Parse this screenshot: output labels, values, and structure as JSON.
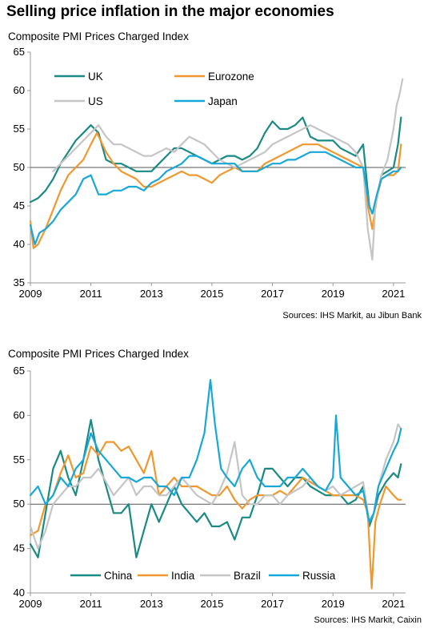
{
  "page": {
    "title": "Selling price inflation in the major economies"
  },
  "chart_data": [
    {
      "type": "line",
      "title": "Composite PMI Prices Charged Index",
      "source": "Sources: IHS Markit, au Jibun Bank",
      "ylim": [
        35,
        65
      ],
      "yticks": [
        "35",
        "40",
        "45",
        "50",
        "55",
        "60",
        "65"
      ],
      "xlim": [
        2009,
        2021.4
      ],
      "xticks": [
        "2009",
        "2011",
        "2013",
        "2015",
        "2017",
        "2019",
        "2021"
      ],
      "reference_line": 50,
      "legend_placement": "top-left",
      "series": [
        {
          "name": "UK",
          "color": "#1a8a84",
          "x": [
            2009.0,
            2009.25,
            2009.5,
            2009.75,
            2010.0,
            2010.25,
            2010.5,
            2010.75,
            2011.0,
            2011.25,
            2011.5,
            2011.75,
            2012.0,
            2012.25,
            2012.5,
            2012.75,
            2013.0,
            2013.25,
            2013.5,
            2013.75,
            2014.0,
            2014.25,
            2014.5,
            2014.75,
            2015.0,
            2015.25,
            2015.5,
            2015.75,
            2016.0,
            2016.25,
            2016.5,
            2016.75,
            2017.0,
            2017.25,
            2017.5,
            2017.75,
            2018.0,
            2018.25,
            2018.5,
            2018.75,
            2019.0,
            2019.25,
            2019.5,
            2019.75,
            2020.0,
            2020.2,
            2020.3,
            2020.45,
            2020.6,
            2020.8,
            2021.0,
            2021.15,
            2021.25
          ],
          "y": [
            45.5,
            46,
            47,
            48.5,
            50.5,
            52,
            53.5,
            54.5,
            55.5,
            54.5,
            51,
            50.5,
            50.5,
            50,
            49.5,
            49.5,
            49.5,
            50.5,
            51.5,
            52.5,
            52.5,
            52,
            51.5,
            51,
            50.5,
            51,
            51.5,
            51.5,
            51,
            51.5,
            52.5,
            54.5,
            56,
            55,
            55,
            55.5,
            56.5,
            54,
            53.5,
            53.5,
            53.5,
            52.5,
            52,
            51.5,
            53,
            45,
            44,
            46,
            49,
            49.5,
            50,
            53,
            56.5
          ]
        },
        {
          "name": "Eurozone",
          "color": "#f0982e",
          "x": [
            2009.0,
            2009.1,
            2009.25,
            2009.5,
            2009.75,
            2010.0,
            2010.25,
            2010.5,
            2010.75,
            2011.0,
            2011.2,
            2011.5,
            2011.75,
            2012.0,
            2012.25,
            2012.5,
            2012.75,
            2013.0,
            2013.25,
            2013.5,
            2013.75,
            2014.0,
            2014.25,
            2014.5,
            2014.75,
            2015.0,
            2015.25,
            2015.5,
            2015.75,
            2016.0,
            2016.25,
            2016.5,
            2016.75,
            2017.0,
            2017.25,
            2017.5,
            2017.75,
            2018.0,
            2018.25,
            2018.5,
            2018.75,
            2019.0,
            2019.25,
            2019.5,
            2019.75,
            2020.0,
            2020.15,
            2020.3,
            2020.45,
            2020.6,
            2020.8,
            2021.0,
            2021.15,
            2021.25
          ],
          "y": [
            43,
            39.5,
            40,
            42,
            44.5,
            47,
            49,
            50,
            51,
            53,
            54.5,
            52,
            50.5,
            49.5,
            49,
            48.5,
            47.5,
            47.5,
            48,
            48.5,
            49,
            49.5,
            49,
            49,
            48.5,
            48,
            49,
            49.5,
            50,
            49.5,
            49.5,
            49.5,
            50.5,
            51,
            51.5,
            52,
            52.5,
            53,
            53,
            53,
            52.5,
            52,
            51.5,
            51,
            50.5,
            50,
            45,
            42,
            46,
            48.5,
            49,
            49,
            49.5,
            53
          ]
        },
        {
          "name": "US",
          "color": "#c5c5c5",
          "x": [
            2009.75,
            2010.0,
            2010.25,
            2010.5,
            2010.75,
            2011.0,
            2011.25,
            2011.5,
            2011.75,
            2012.0,
            2012.25,
            2012.5,
            2012.75,
            2013.0,
            2013.25,
            2013.5,
            2013.75,
            2014.0,
            2014.25,
            2014.5,
            2014.75,
            2015.0,
            2015.25,
            2015.5,
            2015.75,
            2016.0,
            2016.25,
            2016.5,
            2016.75,
            2017.0,
            2017.25,
            2017.5,
            2017.75,
            2018.0,
            2018.25,
            2018.5,
            2018.75,
            2019.0,
            2019.25,
            2019.5,
            2019.75,
            2020.0,
            2020.15,
            2020.3,
            2020.4,
            2020.6,
            2020.8,
            2021.0,
            2021.1,
            2021.2,
            2021.3
          ],
          "y": [
            49.5,
            50.5,
            51.5,
            52.5,
            53.5,
            54.5,
            55.5,
            54,
            53,
            53,
            52.5,
            52,
            51.5,
            51.5,
            52,
            52.5,
            52,
            53,
            54,
            53.5,
            53,
            52,
            51,
            50.5,
            50,
            50.5,
            51,
            51.5,
            52,
            53,
            53.5,
            54,
            54.5,
            55,
            55.5,
            55,
            54.5,
            54,
            53.5,
            53,
            52,
            50,
            42,
            38,
            45,
            49,
            51,
            55,
            58,
            59.5,
            61.5
          ]
        },
        {
          "name": "Japan",
          "color": "#18a8d8",
          "x": [
            2009.0,
            2009.15,
            2009.3,
            2009.5,
            2009.75,
            2010.0,
            2010.25,
            2010.5,
            2010.75,
            2011.0,
            2011.25,
            2011.5,
            2011.75,
            2012.0,
            2012.25,
            2012.5,
            2012.75,
            2013.0,
            2013.25,
            2013.5,
            2013.75,
            2014.0,
            2014.25,
            2014.5,
            2014.75,
            2015.0,
            2015.25,
            2015.5,
            2015.75,
            2016.0,
            2016.25,
            2016.5,
            2016.75,
            2017.0,
            2017.25,
            2017.5,
            2017.75,
            2018.0,
            2018.25,
            2018.5,
            2018.75,
            2019.0,
            2019.25,
            2019.5,
            2019.75,
            2020.0,
            2020.2,
            2020.3,
            2020.45,
            2020.6,
            2020.8,
            2021.0,
            2021.15,
            2021.25
          ],
          "y": [
            42.5,
            40,
            41.5,
            42,
            43,
            44.5,
            45.5,
            46.5,
            48.5,
            49,
            46.5,
            46.5,
            47,
            47,
            47.5,
            47.5,
            47,
            48,
            48.5,
            49.5,
            50,
            50.5,
            51.5,
            51.5,
            51,
            50.5,
            50.5,
            50.5,
            50.5,
            49.5,
            49.5,
            49.5,
            50,
            50.5,
            50.5,
            51,
            51,
            51.5,
            52,
            52,
            52,
            51.5,
            51,
            50.5,
            50,
            50,
            45,
            44,
            46.5,
            48.5,
            49,
            49.5,
            49.5,
            50
          ]
        }
      ]
    },
    {
      "type": "line",
      "title": "Composite  PMI Prices Charged Index",
      "source": "Sources: IHS Markit, Caixin",
      "ylim": [
        40,
        65
      ],
      "yticks": [
        "40",
        "45",
        "50",
        "55",
        "60",
        "65"
      ],
      "xlim": [
        2009,
        2021.4
      ],
      "xticks": [
        "2009",
        "2011",
        "2013",
        "2015",
        "2017",
        "2019",
        "2021"
      ],
      "reference_line": 50,
      "legend_placement": "bottom",
      "series": [
        {
          "name": "China",
          "color": "#1a8a84",
          "x": [
            2009.0,
            2009.25,
            2009.5,
            2009.75,
            2010.0,
            2010.25,
            2010.5,
            2010.75,
            2011.0,
            2011.25,
            2011.5,
            2011.75,
            2012.0,
            2012.25,
            2012.5,
            2012.75,
            2013.0,
            2013.25,
            2013.5,
            2013.75,
            2014.0,
            2014.25,
            2014.5,
            2014.75,
            2015.0,
            2015.25,
            2015.5,
            2015.75,
            2016.0,
            2016.25,
            2016.5,
            2016.75,
            2017.0,
            2017.25,
            2017.5,
            2017.75,
            2018.0,
            2018.25,
            2018.5,
            2018.75,
            2019.0,
            2019.25,
            2019.5,
            2019.75,
            2020.0,
            2020.2,
            2020.35,
            2020.5,
            2020.75,
            2021.0,
            2021.15,
            2021.25
          ],
          "y": [
            45.5,
            44,
            49,
            54,
            56,
            53,
            51,
            55,
            59.5,
            55,
            52,
            49,
            49,
            50,
            44,
            47,
            50,
            48,
            50,
            52,
            50,
            49,
            48,
            49,
            47.5,
            47.5,
            48,
            46,
            48.5,
            48.5,
            51,
            54,
            54,
            53,
            52,
            53,
            53,
            52,
            51.5,
            51,
            51,
            51,
            50,
            50.5,
            52,
            47.5,
            49,
            51,
            52.5,
            53.5,
            53,
            54.5
          ]
        },
        {
          "name": "India",
          "color": "#f0982e",
          "x": [
            2009.0,
            2009.25,
            2009.5,
            2009.75,
            2010.0,
            2010.25,
            2010.5,
            2010.75,
            2011.0,
            2011.25,
            2011.5,
            2011.75,
            2012.0,
            2012.25,
            2012.5,
            2012.75,
            2013.0,
            2013.25,
            2013.5,
            2013.75,
            2014.0,
            2014.25,
            2014.5,
            2014.75,
            2015.0,
            2015.25,
            2015.5,
            2015.75,
            2016.0,
            2016.25,
            2016.5,
            2016.75,
            2017.0,
            2017.25,
            2017.5,
            2017.75,
            2018.0,
            2018.25,
            2018.5,
            2018.75,
            2019.0,
            2019.25,
            2019.5,
            2019.75,
            2020.0,
            2020.15,
            2020.28,
            2020.4,
            2020.55,
            2020.75,
            2021.0,
            2021.15,
            2021.25
          ],
          "y": [
            46.5,
            47,
            50,
            51,
            53.5,
            55.5,
            53,
            53.5,
            56.5,
            55.5,
            57,
            57,
            56,
            56.5,
            55,
            53.5,
            56,
            51,
            52,
            53,
            52,
            52,
            52,
            51.5,
            51,
            51,
            52,
            50.5,
            49.5,
            50.5,
            51,
            51,
            51,
            51.5,
            51,
            52,
            53,
            52.5,
            52,
            51.5,
            51,
            51,
            51,
            51,
            50.5,
            49,
            40.5,
            48,
            50,
            52,
            51,
            50.5,
            50.5
          ]
        },
        {
          "name": "Brazil",
          "color": "#c5c5c5",
          "x": [
            2009.0,
            2009.25,
            2009.5,
            2009.75,
            2010.0,
            2010.25,
            2010.5,
            2010.75,
            2011.0,
            2011.25,
            2011.5,
            2011.75,
            2012.0,
            2012.25,
            2012.5,
            2012.75,
            2013.0,
            2013.25,
            2013.5,
            2013.75,
            2014.0,
            2014.25,
            2014.5,
            2014.75,
            2015.0,
            2015.25,
            2015.5,
            2015.75,
            2016.0,
            2016.25,
            2016.5,
            2016.75,
            2017.0,
            2017.25,
            2017.5,
            2017.75,
            2018.0,
            2018.25,
            2018.5,
            2018.75,
            2019.0,
            2019.25,
            2019.5,
            2019.75,
            2020.0,
            2020.2,
            2020.35,
            2020.5,
            2020.75,
            2021.0,
            2021.15,
            2021.25
          ],
          "y": [
            47.5,
            45,
            47,
            50,
            51,
            52,
            52,
            53,
            53,
            54,
            52.5,
            51,
            52,
            53,
            51,
            52,
            52,
            51,
            51,
            52,
            53,
            52,
            51,
            50.5,
            50,
            51.5,
            53.5,
            57,
            51,
            50,
            50,
            51,
            51,
            50,
            51,
            51.5,
            52,
            53,
            52,
            51.5,
            52,
            51,
            51.5,
            52,
            52.5,
            48,
            49,
            52,
            55,
            57,
            59,
            58.5
          ]
        },
        {
          "name": "Russia",
          "color": "#18a8d8",
          "x": [
            2009.0,
            2009.25,
            2009.5,
            2009.75,
            2010.0,
            2010.25,
            2010.5,
            2010.75,
            2011.0,
            2011.25,
            2011.5,
            2011.75,
            2012.0,
            2012.25,
            2012.5,
            2012.75,
            2013.0,
            2013.25,
            2013.5,
            2013.75,
            2014.0,
            2014.25,
            2014.5,
            2014.75,
            2014.95,
            2015.1,
            2015.3,
            2015.5,
            2015.75,
            2016.0,
            2016.25,
            2016.5,
            2016.75,
            2017.0,
            2017.25,
            2017.5,
            2017.75,
            2018.0,
            2018.25,
            2018.5,
            2018.75,
            2019.0,
            2019.1,
            2019.25,
            2019.5,
            2019.75,
            2020.0,
            2020.2,
            2020.35,
            2020.5,
            2020.75,
            2021.0,
            2021.15,
            2021.25
          ],
          "y": [
            51,
            52,
            50,
            51,
            53,
            52,
            54,
            55,
            58,
            56,
            55,
            54,
            53,
            53,
            52.5,
            53,
            53,
            52,
            52,
            51,
            53,
            53,
            55,
            58,
            64,
            59,
            54,
            53,
            52,
            54,
            55,
            53,
            52,
            52,
            52,
            53,
            53,
            54,
            53,
            52,
            51.5,
            53,
            60,
            53,
            52,
            51,
            51.5,
            48,
            49,
            52,
            54,
            56,
            57,
            58.5
          ]
        }
      ]
    }
  ]
}
